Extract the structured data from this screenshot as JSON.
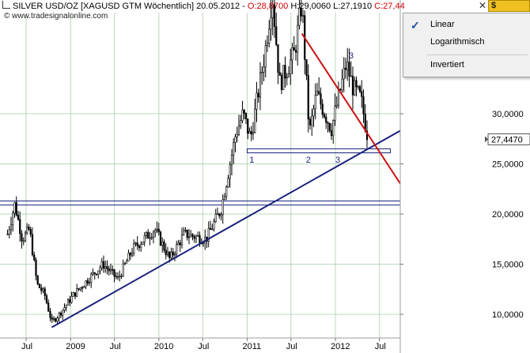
{
  "header": {
    "instrument": "SILVER USD/OZ [XAGUSD GTM  Wöchentlich] 20.05.2012 -",
    "open": "O:28,8700",
    "high": "H:29,0060",
    "low": "L:27,1910",
    "close": "C:27,44",
    "copyright": "© www.tradesignalonline.com"
  },
  "window": {
    "close_glyph": "✕",
    "currency_button": "$"
  },
  "scale_menu": {
    "items": [
      {
        "label": "Linear",
        "checked": true
      },
      {
        "label": "Logarithmisch",
        "checked": false
      },
      {
        "label": "Invertiert",
        "checked": false
      }
    ],
    "check_glyph": "✓"
  },
  "price_axis": {
    "ticks": [
      "30,0000",
      "25,0000",
      "20,0000",
      "15,0000",
      "10,0000"
    ],
    "current_price": "27,4470"
  },
  "time_axis": {
    "labels": [
      "Jul",
      "2009",
      "Jul",
      "2010",
      "Jul",
      "2011",
      "Jul",
      "2012",
      "Jul"
    ]
  },
  "annotations": [
    "1",
    "2",
    "3",
    "3"
  ],
  "colors": {
    "candle": "#000000",
    "trend_red": "#cc1111",
    "trend_blue": "#1a237e",
    "grid": "#8fbc8f",
    "header_red": "#cc0000",
    "price_box": "#ffffff"
  },
  "chart_data": {
    "type": "candlestick",
    "title": "SILVER USD/OZ [XAGUSD GTM  Wöchentlich] 20.05.2012",
    "ylim": [
      8.5,
      38
    ],
    "yticks": [
      10,
      15,
      20,
      25,
      30
    ],
    "scale": "linear",
    "last_values": {
      "open": 28.87,
      "high": 29.006,
      "low": 27.191,
      "close": 27.447
    },
    "path_points": [
      {
        "date": "2008-04",
        "price": 18
      },
      {
        "date": "2008-05",
        "price": 21
      },
      {
        "date": "2008-06",
        "price": 17.5
      },
      {
        "date": "2008-07",
        "price": 18.5
      },
      {
        "date": "2008-08",
        "price": 13
      },
      {
        "date": "2008-09",
        "price": 12
      },
      {
        "date": "2008-10",
        "price": 9.2
      },
      {
        "date": "2008-11",
        "price": 10
      },
      {
        "date": "2009-01",
        "price": 12
      },
      {
        "date": "2009-03",
        "price": 13.5
      },
      {
        "date": "2009-05",
        "price": 15
      },
      {
        "date": "2009-07",
        "price": 13.5
      },
      {
        "date": "2009-09",
        "price": 16.5
      },
      {
        "date": "2009-12",
        "price": 18.5
      },
      {
        "date": "2010-02",
        "price": 15.5
      },
      {
        "date": "2010-04",
        "price": 18
      },
      {
        "date": "2010-07",
        "price": 17.5
      },
      {
        "date": "2010-09",
        "price": 20.5
      },
      {
        "date": "2010-11",
        "price": 28
      },
      {
        "date": "2010-12",
        "price": 30
      },
      {
        "date": "2011-01",
        "price": 27.5
      },
      {
        "date": "2011-03",
        "price": 36
      },
      {
        "date": "2011-04",
        "price": 42
      },
      {
        "date": "2011-05",
        "price": 33
      },
      {
        "date": "2011-07",
        "price": 36
      },
      {
        "date": "2011-08",
        "price": 41
      },
      {
        "date": "2011-09",
        "price": 28
      },
      {
        "date": "2011-10",
        "price": 32
      },
      {
        "date": "2011-12",
        "price": 28.5
      },
      {
        "date": "2012-02",
        "price": 35
      },
      {
        "date": "2012-03",
        "price": 32.5
      },
      {
        "date": "2012-04",
        "price": 31.5
      },
      {
        "date": "2012-05",
        "price": 27.45
      }
    ],
    "support_band": [
      26.1,
      26.5
    ],
    "resistance_band": [
      20.9,
      21.3
    ],
    "trendlines": [
      {
        "name": "support",
        "from": {
          "date": "2008-10",
          "price": 8.7
        },
        "to": {
          "date": "2012-11",
          "price": 29
        }
      },
      {
        "name": "resistance",
        "from": {
          "date": "2011-08",
          "price": 38
        },
        "to": {
          "date": "2012-10",
          "price": 22.3
        }
      }
    ]
  }
}
